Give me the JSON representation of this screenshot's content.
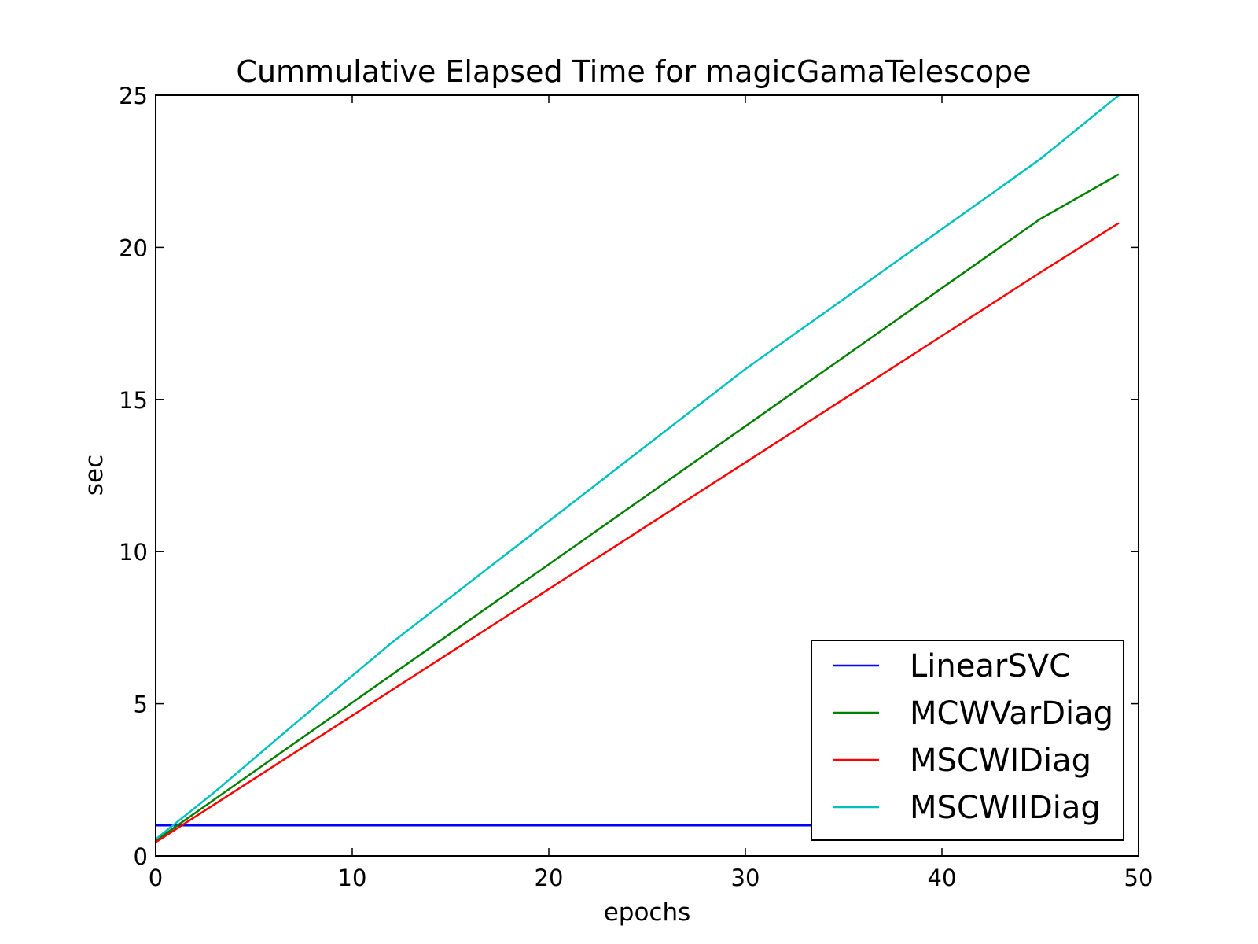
{
  "chart_data": {
    "type": "line",
    "title": "Cummulative Elapsed Time for magicGamaTelescope",
    "xlabel": "epochs",
    "ylabel": "sec",
    "xlim": [
      0,
      50
    ],
    "ylim": [
      0,
      25
    ],
    "xticks": [
      0,
      10,
      20,
      30,
      40,
      50
    ],
    "yticks": [
      0,
      5,
      10,
      15,
      20,
      25
    ],
    "grid": false,
    "legend_position": "lower-right",
    "series": [
      {
        "name": "LinearSVC",
        "color": "#0000ff",
        "x": [
          0,
          35
        ],
        "y": [
          1.0,
          1.0
        ]
      },
      {
        "name": "MCWVarDiag",
        "color": "#008000",
        "x": [
          0,
          5,
          10,
          15,
          20,
          25,
          30,
          35,
          40,
          45,
          49
        ],
        "y": [
          0.5,
          2.77,
          5.04,
          7.31,
          9.58,
          11.85,
          14.12,
          16.39,
          18.66,
          20.93,
          22.4
        ]
      },
      {
        "name": "MSCWIDiag",
        "color": "#ff0000",
        "x": [
          0,
          5,
          10,
          15,
          20,
          25,
          30,
          35,
          40,
          45,
          49
        ],
        "y": [
          0.45,
          2.53,
          4.61,
          6.69,
          8.77,
          10.85,
          12.93,
          15.01,
          17.09,
          19.17,
          20.8
        ]
      },
      {
        "name": "MSCWIIDiag",
        "color": "#00bfbf",
        "x": [
          0,
          3,
          7,
          12,
          15,
          20,
          25,
          30,
          35,
          40,
          45,
          49
        ],
        "y": [
          0.55,
          2.1,
          4.3,
          7.0,
          8.5,
          11.0,
          13.5,
          16.0,
          18.3,
          20.6,
          22.9,
          25.0
        ]
      }
    ]
  }
}
